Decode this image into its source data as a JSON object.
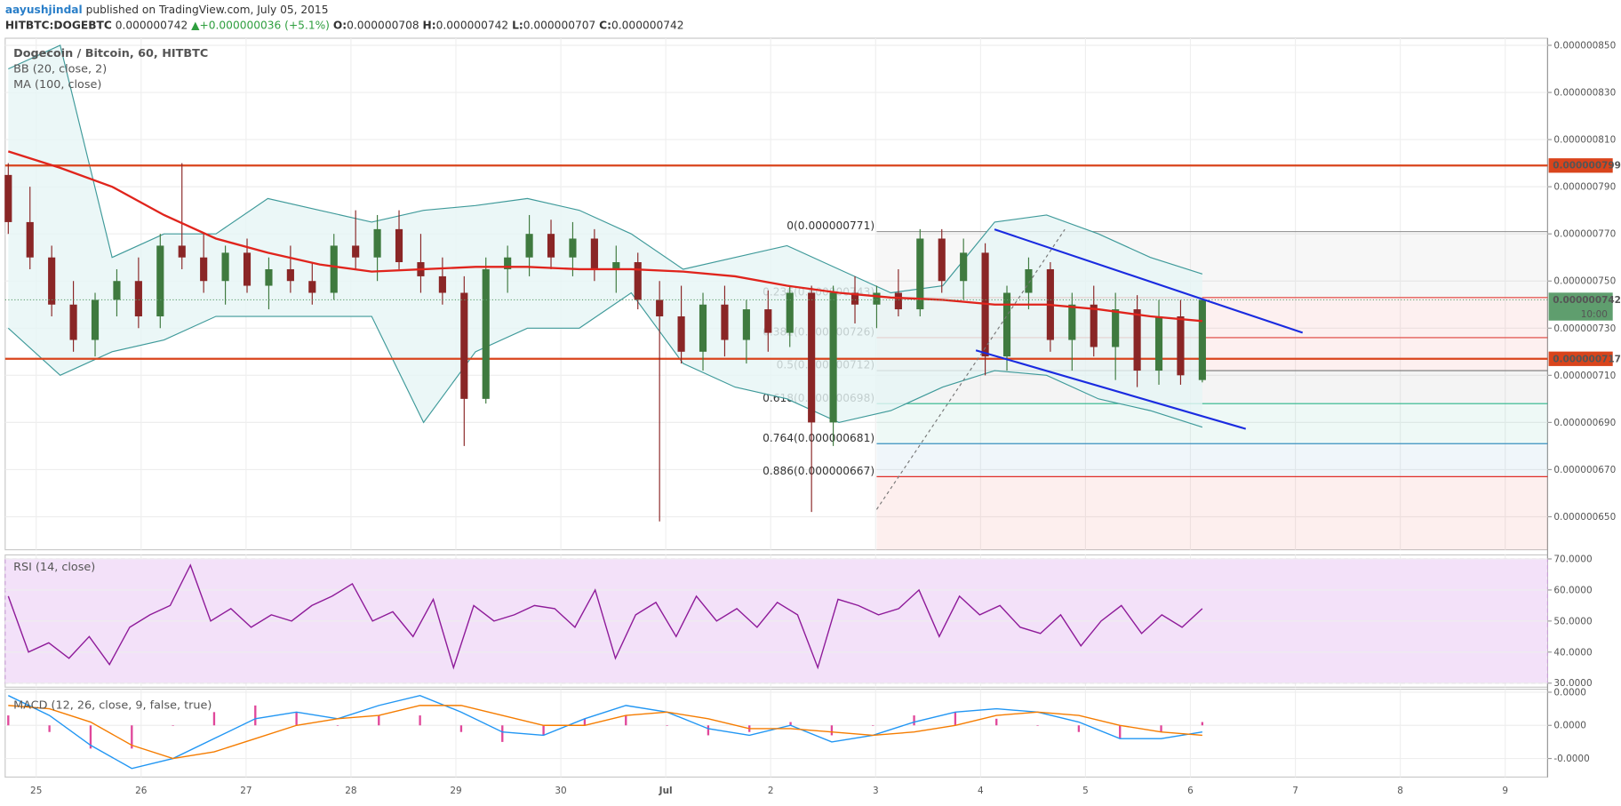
{
  "header": {
    "author": "aayushjindal",
    "published": "published on TradingView.com, July 05, 2015",
    "symbol": "HITBTC:DOGEBTC",
    "last": "0.000000742",
    "arrow": "▲",
    "change": "+0.000000036 (+5.1%)",
    "ohlc": [
      {
        "key": "O:",
        "value": "0.000000708"
      },
      {
        "key": "H:",
        "value": "0.000000742"
      },
      {
        "key": "L:",
        "value": "0.000000707"
      },
      {
        "key": "C:",
        "value": "0.000000742"
      }
    ]
  },
  "chart_data": [
    {
      "type": "candlestick",
      "title": "Dogecoin / Bitcoin, 60, HITBTC",
      "x_labels": [
        "25",
        "26",
        "27",
        "28",
        "29",
        "30",
        "Jul",
        "2",
        "3",
        "4",
        "5",
        "6",
        "7",
        "8",
        "9"
      ],
      "up_color": "#3f7a3f",
      "down_color": "#8a2626",
      "open": [
        7.95e-07,
        7.75e-07,
        7.6e-07,
        7.4e-07,
        7.25e-07,
        7.42e-07,
        7.5e-07,
        7.35e-07,
        7.65e-07,
        7.6e-07,
        7.5e-07,
        7.62e-07,
        7.48e-07,
        7.55e-07,
        7.5e-07,
        7.45e-07,
        7.65e-07,
        7.6e-07,
        7.72e-07,
        7.58e-07,
        7.52e-07,
        7.45e-07,
        7e-07,
        7.55e-07,
        7.6e-07,
        7.7e-07,
        7.6e-07,
        7.68e-07,
        7.55e-07,
        7.58e-07,
        7.42e-07,
        7.35e-07,
        7.2e-07,
        7.4e-07,
        7.25e-07,
        7.38e-07,
        7.28e-07,
        7.45e-07,
        6.9e-07,
        7.45e-07,
        7.4e-07,
        7.45e-07,
        7.38e-07,
        7.68e-07,
        7.5e-07,
        7.62e-07,
        7.18e-07,
        7.45e-07,
        7.55e-07,
        7.25e-07,
        7.4e-07,
        7.22e-07,
        7.38e-07,
        7.12e-07,
        7.35e-07,
        7.08e-07
      ],
      "high": [
        8e-07,
        7.9e-07,
        7.65e-07,
        7.5e-07,
        7.45e-07,
        7.55e-07,
        7.6e-07,
        7.7e-07,
        8e-07,
        7.7e-07,
        7.65e-07,
        7.68e-07,
        7.6e-07,
        7.65e-07,
        7.58e-07,
        7.7e-07,
        7.8e-07,
        7.78e-07,
        7.8e-07,
        7.7e-07,
        7.6e-07,
        7.52e-07,
        7.6e-07,
        7.65e-07,
        7.78e-07,
        7.76e-07,
        7.75e-07,
        7.72e-07,
        7.65e-07,
        7.62e-07,
        7.5e-07,
        7.48e-07,
        7.45e-07,
        7.48e-07,
        7.42e-07,
        7.46e-07,
        7.48e-07,
        7.48e-07,
        7.48e-07,
        7.52e-07,
        7.48e-07,
        7.55e-07,
        7.72e-07,
        7.72e-07,
        7.68e-07,
        7.66e-07,
        7.48e-07,
        7.6e-07,
        7.58e-07,
        7.45e-07,
        7.48e-07,
        7.45e-07,
        7.44e-07,
        7.42e-07,
        7.42e-07,
        7.42e-07
      ],
      "low": [
        7.7e-07,
        7.55e-07,
        7.35e-07,
        7.2e-07,
        7.18e-07,
        7.35e-07,
        7.3e-07,
        7.3e-07,
        7.55e-07,
        7.45e-07,
        7.4e-07,
        7.45e-07,
        7.38e-07,
        7.45e-07,
        7.4e-07,
        7.42e-07,
        7.55e-07,
        7.5e-07,
        7.55e-07,
        7.45e-07,
        7.4e-07,
        6.8e-07,
        6.98e-07,
        7.45e-07,
        7.52e-07,
        7.55e-07,
        7.52e-07,
        7.5e-07,
        7.45e-07,
        7.38e-07,
        6.48e-07,
        7.15e-07,
        7.12e-07,
        7.18e-07,
        7.15e-07,
        7.2e-07,
        7.22e-07,
        6.52e-07,
        6.8e-07,
        7.32e-07,
        7.3e-07,
        7.35e-07,
        7.35e-07,
        7.45e-07,
        7.42e-07,
        7.1e-07,
        7.12e-07,
        7.38e-07,
        7.2e-07,
        7.12e-07,
        7.18e-07,
        7.08e-07,
        7.05e-07,
        7.06e-07,
        7.06e-07,
        7.07e-07
      ],
      "close": [
        7.75e-07,
        7.6e-07,
        7.4e-07,
        7.25e-07,
        7.42e-07,
        7.5e-07,
        7.35e-07,
        7.65e-07,
        7.6e-07,
        7.5e-07,
        7.62e-07,
        7.48e-07,
        7.55e-07,
        7.5e-07,
        7.45e-07,
        7.65e-07,
        7.6e-07,
        7.72e-07,
        7.58e-07,
        7.52e-07,
        7.45e-07,
        7e-07,
        7.55e-07,
        7.6e-07,
        7.7e-07,
        7.6e-07,
        7.68e-07,
        7.55e-07,
        7.58e-07,
        7.42e-07,
        7.35e-07,
        7.2e-07,
        7.4e-07,
        7.25e-07,
        7.38e-07,
        7.28e-07,
        7.45e-07,
        6.9e-07,
        7.45e-07,
        7.4e-07,
        7.45e-07,
        7.38e-07,
        7.68e-07,
        7.5e-07,
        7.62e-07,
        7.18e-07,
        7.45e-07,
        7.55e-07,
        7.25e-07,
        7.4e-07,
        7.22e-07,
        7.38e-07,
        7.12e-07,
        7.35e-07,
        7.1e-07,
        7.42e-07
      ],
      "indicators": [
        {
          "name": "BB (20, close, 2)",
          "color": "#3f9a9a",
          "fill": "#e6f5f5",
          "upper": [
            8.4e-07,
            8.5e-07,
            7.6e-07,
            7.7e-07,
            7.7e-07,
            7.85e-07,
            7.8e-07,
            7.75e-07,
            7.8e-07,
            7.82e-07,
            7.85e-07,
            7.8e-07,
            7.7e-07,
            7.55e-07,
            7.6e-07,
            7.65e-07,
            7.55e-07,
            7.45e-07,
            7.48e-07,
            7.75e-07,
            7.78e-07,
            7.7e-07,
            7.6e-07,
            7.53e-07
          ],
          "lower": [
            7.3e-07,
            7.1e-07,
            7.2e-07,
            7.25e-07,
            7.35e-07,
            7.35e-07,
            7.35e-07,
            7.35e-07,
            6.9e-07,
            7.2e-07,
            7.3e-07,
            7.3e-07,
            7.45e-07,
            7.15e-07,
            7.05e-07,
            7e-07,
            6.9e-07,
            6.95e-07,
            7.05e-07,
            7.12e-07,
            7.1e-07,
            7e-07,
            6.95e-07,
            6.88e-07
          ]
        },
        {
          "name": "MA (100, close)",
          "color": "#e0241c",
          "values": [
            8.05e-07,
            7.98e-07,
            7.9e-07,
            7.78e-07,
            7.68e-07,
            7.62e-07,
            7.57e-07,
            7.54e-07,
            7.55e-07,
            7.56e-07,
            7.56e-07,
            7.55e-07,
            7.55e-07,
            7.54e-07,
            7.52e-07,
            7.48e-07,
            7.45e-07,
            7.43e-07,
            7.42e-07,
            7.4e-07,
            7.4e-07,
            7.38e-07,
            7.35e-07,
            7.33e-07
          ]
        }
      ],
      "ylim": [
        6.36e-07,
        8.53e-07
      ],
      "yticks": [
        {
          "value": 8.5e-07,
          "label": "0.000000850"
        },
        {
          "value": 8.3e-07,
          "label": "0.000000830"
        },
        {
          "value": 8.1e-07,
          "label": "0.000000810"
        },
        {
          "value": 7.9e-07,
          "label": "0.000000790"
        },
        {
          "value": 7.7e-07,
          "label": "0.000000770"
        },
        {
          "value": 7.5e-07,
          "label": "0.000000750"
        },
        {
          "value": 7.3e-07,
          "label": "0.000000730"
        },
        {
          "value": 7.1e-07,
          "label": "0.000000710"
        },
        {
          "value": 6.9e-07,
          "label": "0.000000690"
        },
        {
          "value": 6.7e-07,
          "label": "0.000000670"
        },
        {
          "value": 6.5e-07,
          "label": "0.000000650"
        }
      ],
      "price_lines": [
        {
          "value": 7.99e-07,
          "label": "0.000000799",
          "color": "#d9441c"
        },
        {
          "value": 7.17e-07,
          "label": "0.000000717",
          "color": "#d9441c"
        }
      ],
      "last_price": {
        "value": 7.42e-07,
        "label": "0.000000742",
        "time": "10:00",
        "color": "#5f9e6e"
      },
      "fib_levels": [
        {
          "value": 7.71e-07,
          "label": "0(0.000000771)",
          "color": "#999999"
        },
        {
          "value": 7.43e-07,
          "label": "0.236(0.000000743)",
          "color": "#e0413a"
        },
        {
          "value": 7.26e-07,
          "label": "0.382(0.000000726)",
          "color": "#e0413a"
        },
        {
          "value": 7.12e-07,
          "label": "0.5(0.000000712)",
          "color": "#777777"
        },
        {
          "value": 6.98e-07,
          "label": "0.618(0.000000698)",
          "color": "#2bb58a"
        },
        {
          "value": 6.81e-07,
          "label": "0.764(0.000000681)",
          "color": "#3a8fbf"
        },
        {
          "value": 6.67e-07,
          "label": "0.886(0.000000667)",
          "color": "#e0302a"
        }
      ],
      "grid": true
    },
    {
      "type": "line",
      "title": "RSI (14, close)",
      "band": [
        30,
        70
      ],
      "band_color": "#f3e1f9",
      "series": [
        {
          "name": "RSI",
          "color": "#8e1a99",
          "values": [
            58,
            40,
            43,
            38,
            45,
            36,
            48,
            52,
            55,
            68,
            50,
            54,
            48,
            52,
            50,
            55,
            58,
            62,
            50,
            53,
            45,
            57,
            35,
            55,
            50,
            52,
            55,
            54,
            48,
            60,
            38,
            52,
            56,
            45,
            58,
            50,
            54,
            48,
            56,
            52,
            35,
            57,
            55,
            52,
            54,
            60,
            45,
            58,
            52,
            55,
            48,
            46,
            52,
            42,
            50,
            55,
            46,
            52,
            48,
            54
          ]
        }
      ],
      "ylim": [
        28.7,
        71.3
      ],
      "yticks": [
        {
          "value": 70,
          "label": "70.0000"
        },
        {
          "value": 60,
          "label": "60.0000"
        },
        {
          "value": 50,
          "label": "50.0000"
        },
        {
          "value": 40,
          "label": "40.0000"
        },
        {
          "value": 30,
          "label": "30.0000"
        }
      ],
      "grid": true
    },
    {
      "type": "line",
      "title": "MACD (12, 26, close, 9, false, true)",
      "series": [
        {
          "name": "Histogram",
          "kind": "bar",
          "color": "#e0479a",
          "values": [
            3e-10,
            -2e-10,
            -7e-10,
            -7e-10,
            0,
            4e-10,
            6e-10,
            4e-10,
            0,
            3e-10,
            3e-10,
            -2e-10,
            -5e-10,
            -3e-10,
            2e-10,
            3e-10,
            0,
            -3e-10,
            -2e-10,
            1e-10,
            -3e-10,
            0,
            3e-10,
            4e-10,
            2e-10,
            0,
            -2e-10,
            -4e-10,
            -2e-10,
            1e-10
          ]
        },
        {
          "name": "MACD",
          "color": "#2196f3",
          "values": [
            9e-10,
            3e-10,
            -6e-10,
            -1.3e-09,
            -1e-09,
            -4e-10,
            2e-10,
            4e-10,
            2e-10,
            6e-10,
            9e-10,
            4e-10,
            -2e-10,
            -3e-10,
            2e-10,
            6e-10,
            4e-10,
            -1e-10,
            -3e-10,
            0,
            -5e-10,
            -3e-10,
            1e-10,
            4e-10,
            5e-10,
            4e-10,
            1e-10,
            -4e-10,
            -4e-10,
            -2e-10
          ]
        },
        {
          "name": "Signal",
          "color": "#f57c00",
          "values": [
            6e-10,
            5e-10,
            1e-10,
            -6e-10,
            -1e-09,
            -8e-10,
            -4e-10,
            0,
            2e-10,
            3e-10,
            6e-10,
            6e-10,
            3e-10,
            0,
            0,
            3e-10,
            4e-10,
            2e-10,
            -1e-10,
            -1e-10,
            -2e-10,
            -3e-10,
            -2e-10,
            0,
            3e-10,
            4e-10,
            3e-10,
            0,
            -2e-10,
            -3e-10
          ]
        }
      ],
      "ylim": [
        -1.56e-09,
        1.09e-09
      ],
      "yticks": [
        {
          "value": 1e-09,
          "label": "0.0000"
        },
        {
          "value": 0,
          "label": "0.0000"
        },
        {
          "value": -1e-09,
          "label": "-0.0000"
        }
      ],
      "grid": true
    }
  ]
}
